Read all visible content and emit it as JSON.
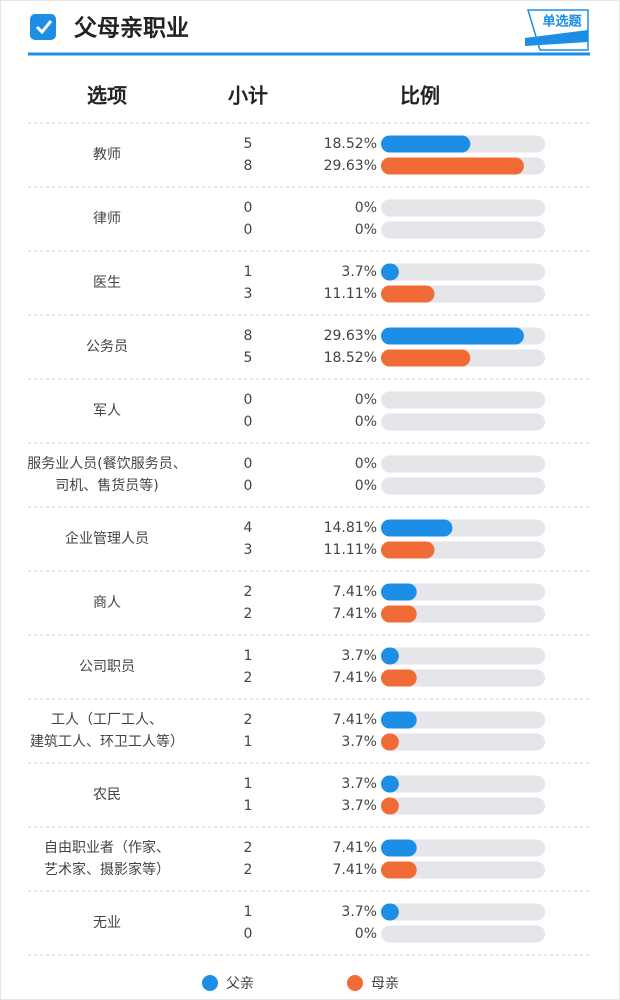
{
  "header": {
    "title": "父母亲职业",
    "badge": "单选题"
  },
  "chart_data": {
    "type": "bar",
    "columns": [
      "选项",
      "小计",
      "比例"
    ],
    "categories": [
      "教师",
      "律师",
      "医生",
      "公务员",
      "军人",
      [
        "服务业人员(餐饮服务员、",
        "司机、售货员等)"
      ],
      "企业管理人员",
      "商人",
      "公司职员",
      [
        "工人（工厂工人、",
        "建筑工人、环卫工人等）"
      ],
      "农民",
      [
        "自由职业者（作家、",
        "艺术家、摄影家等）"
      ],
      "无业"
    ],
    "xlim": [
      0,
      34
    ],
    "series": [
      {
        "name": "父亲",
        "color": "#1d8ee6",
        "counts": [
          5,
          0,
          1,
          8,
          0,
          0,
          4,
          2,
          1,
          2,
          1,
          2,
          1
        ],
        "values": [
          18.52,
          0,
          3.7,
          29.63,
          0,
          0,
          14.81,
          7.41,
          3.7,
          7.41,
          3.7,
          7.41,
          3.7
        ],
        "value_labels": [
          "18.52%",
          "0%",
          "3.7%",
          "29.63%",
          "0%",
          "0%",
          "14.81%",
          "7.41%",
          "3.7%",
          "7.41%",
          "3.7%",
          "7.41%",
          "3.7%"
        ]
      },
      {
        "name": "母亲",
        "color": "#f06b35",
        "counts": [
          8,
          0,
          3,
          5,
          0,
          0,
          3,
          2,
          2,
          1,
          1,
          2,
          0
        ],
        "values": [
          29.63,
          0,
          11.11,
          18.52,
          0,
          0,
          11.11,
          7.41,
          7.41,
          3.7,
          3.7,
          7.41,
          0
        ],
        "value_labels": [
          "29.63%",
          "0%",
          "11.11%",
          "18.52%",
          "0%",
          "0%",
          "11.11%",
          "7.41%",
          "7.41%",
          "3.7%",
          "3.7%",
          "7.41%",
          "0%"
        ]
      }
    ]
  }
}
